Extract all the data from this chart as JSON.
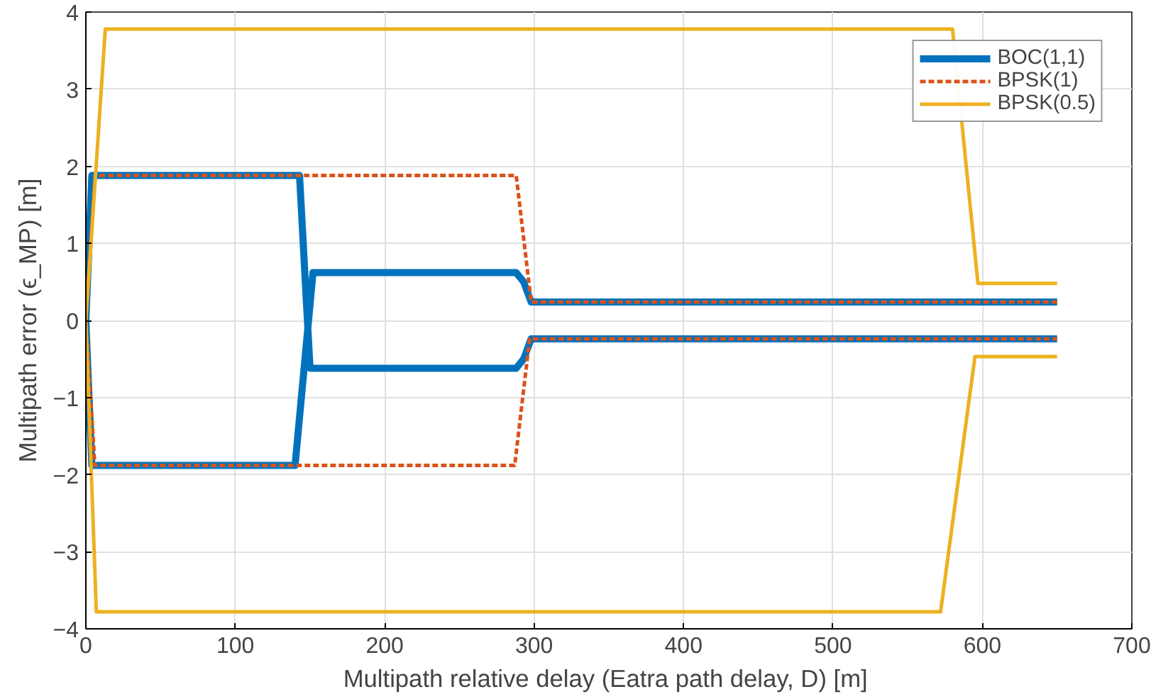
{
  "chart_data": {
    "type": "line",
    "xlabel": "Multipath relative delay (Eatra path delay,  D) [m]",
    "ylabel": "Multipath error (ϵ_MP) [m]",
    "xlim": [
      0,
      700
    ],
    "xticks": [
      0,
      100,
      200,
      300,
      400,
      500,
      600,
      700
    ],
    "ylim": [
      -4,
      4
    ],
    "yticks": [
      -4,
      -3,
      -2,
      -1,
      0,
      1,
      2,
      3,
      4
    ],
    "grid": true,
    "legend": "top right",
    "series": [
      {
        "name": "BOC(1,1)",
        "color": "#0072bd",
        "line_style": "solid",
        "x": [
          650,
          298,
          293,
          288,
          152,
          140,
          4,
          0,
          4,
          143,
          150,
          288,
          293,
          298,
          650
        ],
        "values": [
          0.24,
          0.24,
          0.5,
          0.62,
          0.62,
          -1.88,
          -1.88,
          0,
          1.88,
          1.88,
          -0.62,
          -0.62,
          -0.5,
          -0.24,
          -0.24
        ]
      },
      {
        "name": "BPSK(1)",
        "color": "#d95319",
        "line_style": "dashed",
        "x": [
          650,
          298,
          288,
          6,
          0,
          6,
          287,
          297,
          650
        ],
        "values": [
          0.24,
          0.24,
          1.88,
          1.88,
          0,
          -1.88,
          -1.88,
          -0.24,
          -0.24
        ]
      },
      {
        "name": "BPSK(0.5)",
        "color": "#edb120",
        "line_style": "solid",
        "x": [
          650,
          597,
          580,
          13,
          0,
          7,
          572,
          595,
          650
        ],
        "values": [
          0.48,
          0.48,
          3.78,
          3.78,
          0,
          -3.78,
          -3.78,
          -0.47,
          -0.47
        ]
      }
    ]
  }
}
